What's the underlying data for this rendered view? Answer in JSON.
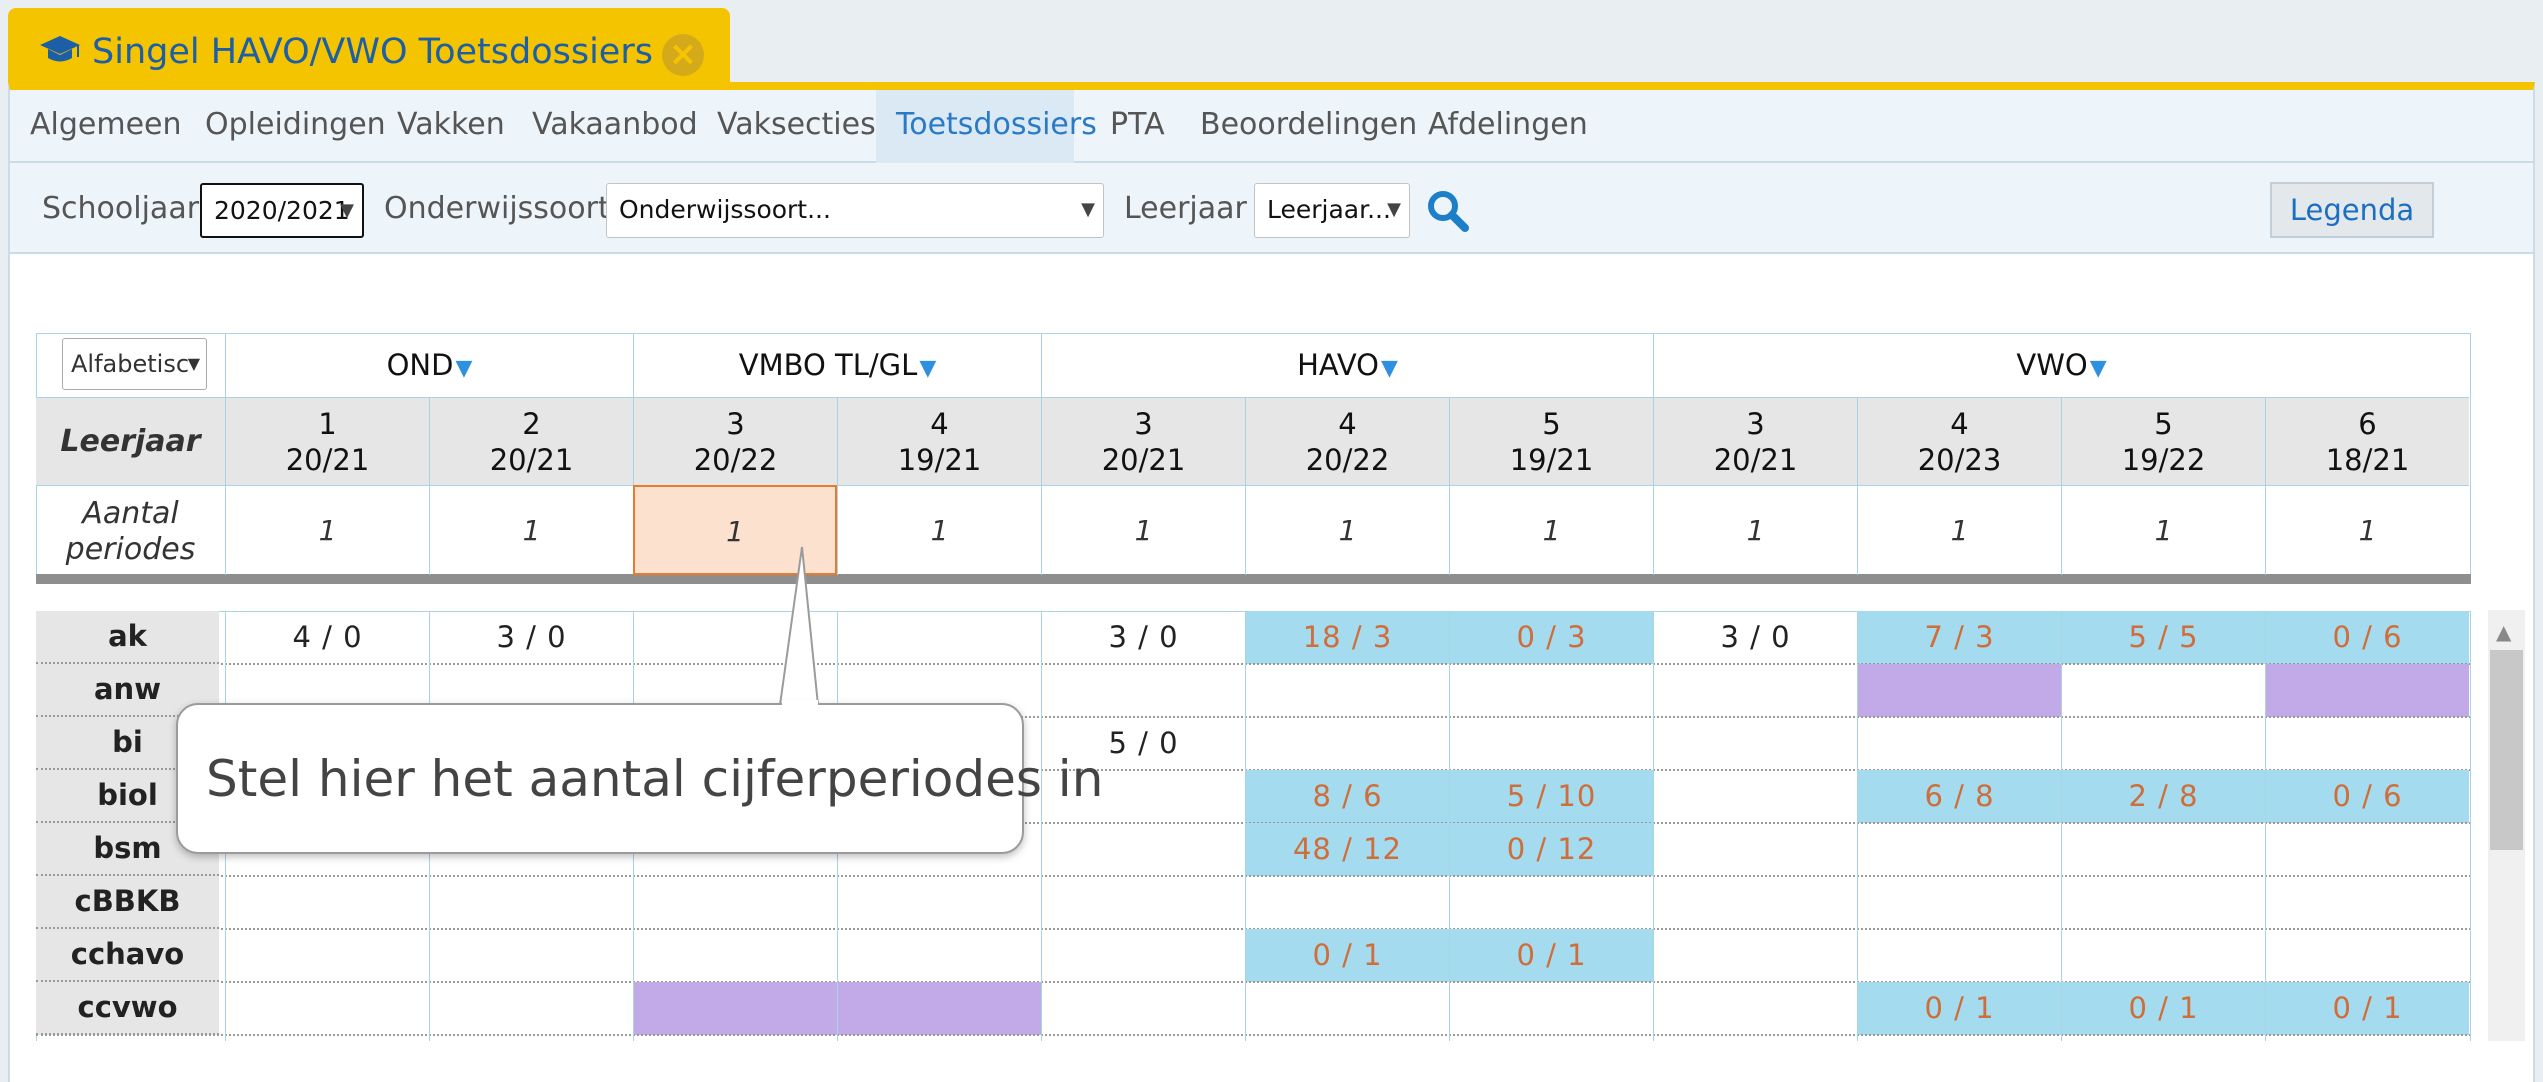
{
  "window": {
    "title": "Singel HAVO/VWO Toetsdossiers",
    "icon": "graduation-cap-icon",
    "close_icon": "close-icon"
  },
  "nav": [
    {
      "label": "Algemeen"
    },
    {
      "label": "Opleidingen"
    },
    {
      "label": "Vakken"
    },
    {
      "label": "Vakaanbod"
    },
    {
      "label": "Vaksecties"
    },
    {
      "label": "Toetsdossiers"
    },
    {
      "label": "PTA"
    },
    {
      "label": "Beoordelingen"
    },
    {
      "label": "Afdelingen"
    }
  ],
  "filters": {
    "schooljaar_label": "Schooljaar",
    "schooljaar_value": "2020/2021",
    "onderwijssoort_label": "Onderwijssoort",
    "onderwijssoort_value": "Onderwijssoort...",
    "leerjaar_label": "Leerjaar",
    "leerjaar_value": "Leerjaar...",
    "search_icon": "search-icon"
  },
  "legenda_label": "Legenda",
  "grid": {
    "sort_value": "Alfabetisc",
    "groups": [
      {
        "label": "OND"
      },
      {
        "label": "VMBO TL/GL"
      },
      {
        "label": "HAVO"
      },
      {
        "label": "VWO"
      }
    ],
    "leerjaar_label": "Leerjaar",
    "aantal_label_1": "Aantal",
    "aantal_label_2": "periodes",
    "columns": [
      {
        "year": "1",
        "span": "20/21",
        "periods": "1"
      },
      {
        "year": "2",
        "span": "20/21",
        "periods": "1"
      },
      {
        "year": "3",
        "span": "20/22",
        "periods": "1"
      },
      {
        "year": "4",
        "span": "19/21",
        "periods": "1"
      },
      {
        "year": "3",
        "span": "20/21",
        "periods": "1"
      },
      {
        "year": "4",
        "span": "20/22",
        "periods": "1"
      },
      {
        "year": "5",
        "span": "19/21",
        "periods": "1"
      },
      {
        "year": "3",
        "span": "20/21",
        "periods": "1"
      },
      {
        "year": "4",
        "span": "20/23",
        "periods": "1"
      },
      {
        "year": "5",
        "span": "19/22",
        "periods": "1"
      },
      {
        "year": "6",
        "span": "18/21",
        "periods": "1"
      }
    ],
    "rows": [
      {
        "subject": "ak",
        "cells": [
          {
            "t": "4 / 0",
            "s": "plain"
          },
          {
            "t": "3 / 0",
            "s": "plain"
          },
          {
            "t": "",
            "s": ""
          },
          {
            "t": "",
            "s": ""
          },
          {
            "t": "3 / 0",
            "s": "plain"
          },
          {
            "t": "18 / 3",
            "s": "blue"
          },
          {
            "t": "0 / 3",
            "s": "blue"
          },
          {
            "t": "3 / 0",
            "s": "plain"
          },
          {
            "t": "7 / 3",
            "s": "blue"
          },
          {
            "t": "5 / 5",
            "s": "blue"
          },
          {
            "t": "0 / 6",
            "s": "blue"
          }
        ]
      },
      {
        "subject": "anw",
        "cells": [
          {
            "t": "",
            "s": ""
          },
          {
            "t": "",
            "s": ""
          },
          {
            "t": "",
            "s": ""
          },
          {
            "t": "",
            "s": ""
          },
          {
            "t": "",
            "s": ""
          },
          {
            "t": "",
            "s": ""
          },
          {
            "t": "",
            "s": ""
          },
          {
            "t": "",
            "s": ""
          },
          {
            "t": "",
            "s": "purple"
          },
          {
            "t": "",
            "s": ""
          },
          {
            "t": "",
            "s": "purple"
          }
        ]
      },
      {
        "subject": "bi",
        "cells": [
          {
            "t": "",
            "s": ""
          },
          {
            "t": "",
            "s": ""
          },
          {
            "t": "",
            "s": ""
          },
          {
            "t": "",
            "s": ""
          },
          {
            "t": "5 / 0",
            "s": "plain"
          },
          {
            "t": "",
            "s": ""
          },
          {
            "t": "",
            "s": ""
          },
          {
            "t": "",
            "s": ""
          },
          {
            "t": "",
            "s": ""
          },
          {
            "t": "",
            "s": ""
          },
          {
            "t": "",
            "s": ""
          }
        ]
      },
      {
        "subject": "biol",
        "cells": [
          {
            "t": "",
            "s": ""
          },
          {
            "t": "",
            "s": ""
          },
          {
            "t": "",
            "s": ""
          },
          {
            "t": "",
            "s": ""
          },
          {
            "t": "",
            "s": ""
          },
          {
            "t": "8 / 6",
            "s": "blue"
          },
          {
            "t": "5 / 10",
            "s": "blue"
          },
          {
            "t": "",
            "s": ""
          },
          {
            "t": "6 / 8",
            "s": "blue"
          },
          {
            "t": "2 / 8",
            "s": "blue"
          },
          {
            "t": "0 / 6",
            "s": "blue"
          }
        ]
      },
      {
        "subject": "bsm",
        "cells": [
          {
            "t": "",
            "s": ""
          },
          {
            "t": "",
            "s": ""
          },
          {
            "t": "",
            "s": ""
          },
          {
            "t": "",
            "s": ""
          },
          {
            "t": "",
            "s": ""
          },
          {
            "t": "48 / 12",
            "s": "blue"
          },
          {
            "t": "0 / 12",
            "s": "blue"
          },
          {
            "t": "",
            "s": ""
          },
          {
            "t": "",
            "s": ""
          },
          {
            "t": "",
            "s": ""
          },
          {
            "t": "",
            "s": ""
          }
        ]
      },
      {
        "subject": "cBBKB",
        "cells": [
          {
            "t": "",
            "s": ""
          },
          {
            "t": "",
            "s": ""
          },
          {
            "t": "",
            "s": ""
          },
          {
            "t": "",
            "s": ""
          },
          {
            "t": "",
            "s": ""
          },
          {
            "t": "",
            "s": ""
          },
          {
            "t": "",
            "s": ""
          },
          {
            "t": "",
            "s": ""
          },
          {
            "t": "",
            "s": ""
          },
          {
            "t": "",
            "s": ""
          },
          {
            "t": "",
            "s": ""
          }
        ]
      },
      {
        "subject": "cchavo",
        "cells": [
          {
            "t": "",
            "s": ""
          },
          {
            "t": "",
            "s": ""
          },
          {
            "t": "",
            "s": ""
          },
          {
            "t": "",
            "s": ""
          },
          {
            "t": "",
            "s": ""
          },
          {
            "t": "0 / 1",
            "s": "blue"
          },
          {
            "t": "0 / 1",
            "s": "blue"
          },
          {
            "t": "",
            "s": ""
          },
          {
            "t": "",
            "s": ""
          },
          {
            "t": "",
            "s": ""
          },
          {
            "t": "",
            "s": ""
          }
        ]
      },
      {
        "subject": "ccvwo",
        "cells": [
          {
            "t": "",
            "s": ""
          },
          {
            "t": "",
            "s": ""
          },
          {
            "t": "",
            "s": "purple"
          },
          {
            "t": "",
            "s": "purple"
          },
          {
            "t": "",
            "s": ""
          },
          {
            "t": "",
            "s": ""
          },
          {
            "t": "",
            "s": ""
          },
          {
            "t": "",
            "s": ""
          },
          {
            "t": "0 / 1",
            "s": "blue"
          },
          {
            "t": "0 / 1",
            "s": "blue"
          },
          {
            "t": "0 / 1",
            "s": "blue"
          }
        ]
      }
    ]
  },
  "callout": {
    "text": "Stel hier het aantal cijferperiodes in"
  },
  "colors": {
    "accent": "#f5c400",
    "link": "#2a7ac7",
    "cell_blue": "#a4dbef",
    "cell_purple": "#c2a9e8",
    "value_orange": "#cf6e3a"
  }
}
